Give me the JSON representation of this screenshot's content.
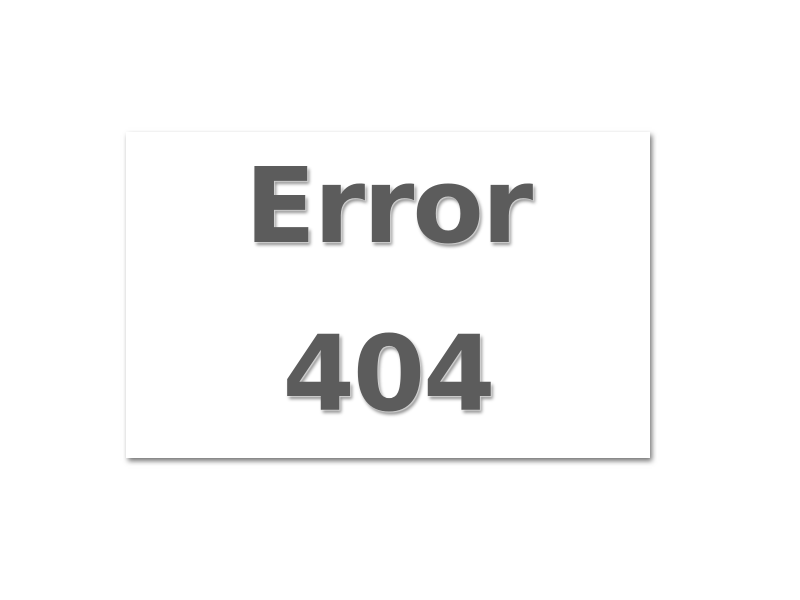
{
  "error": {
    "title": "Error",
    "code": "404"
  }
}
